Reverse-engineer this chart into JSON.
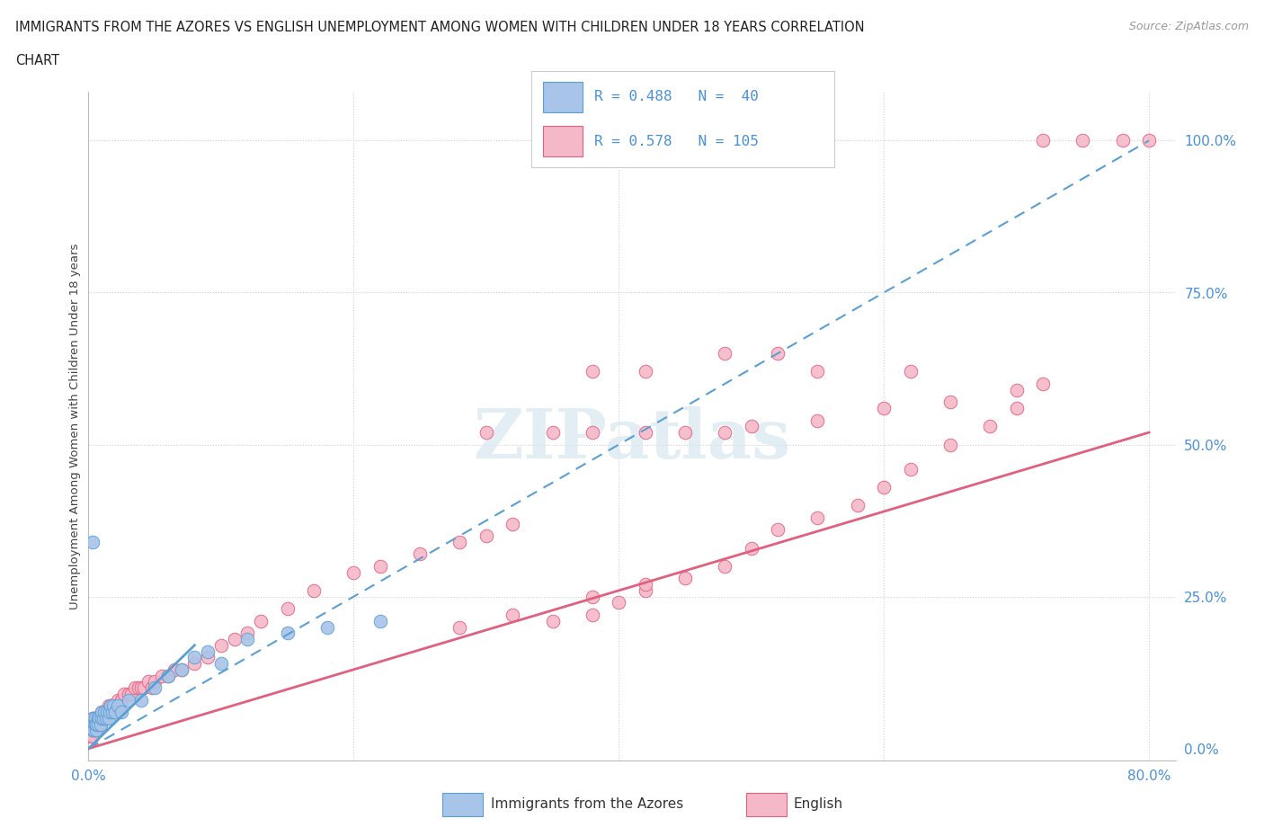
{
  "title_line1": "IMMIGRANTS FROM THE AZORES VS ENGLISH UNEMPLOYMENT AMONG WOMEN WITH CHILDREN UNDER 18 YEARS CORRELATION",
  "title_line2": "CHART",
  "source": "Source: ZipAtlas.com",
  "ylabel": "Unemployment Among Women with Children Under 18 years",
  "xlim": [
    0.0,
    0.82
  ],
  "ylim": [
    -0.02,
    1.08
  ],
  "blue_color": "#a8c4e8",
  "pink_color": "#f5b8c8",
  "blue_edge_color": "#5a9fd4",
  "pink_edge_color": "#e06080",
  "blue_line_color": "#5a9fd4",
  "pink_line_color": "#e06080",
  "blue_trend": [
    0.0,
    0.0,
    0.8,
    1.0
  ],
  "pink_trend": [
    0.0,
    0.0,
    0.8,
    0.52
  ],
  "blue_solid_line": [
    0.0,
    0.0,
    0.08,
    0.17
  ],
  "legend_text_color": "#4a90d9",
  "grid_color": "#d0d0d0",
  "background_color": "#ffffff",
  "watermark": "ZIPatlas",
  "blue_scatter_x": [
    0.002,
    0.003,
    0.003,
    0.004,
    0.004,
    0.005,
    0.005,
    0.006,
    0.006,
    0.007,
    0.007,
    0.008,
    0.009,
    0.01,
    0.01,
    0.011,
    0.012,
    0.013,
    0.014,
    0.015,
    0.016,
    0.017,
    0.018,
    0.019,
    0.02,
    0.022,
    0.025,
    0.03,
    0.04,
    0.05,
    0.06,
    0.07,
    0.08,
    0.09,
    0.1,
    0.12,
    0.15,
    0.18,
    0.22,
    0.003
  ],
  "blue_scatter_y": [
    0.04,
    0.03,
    0.05,
    0.04,
    0.03,
    0.05,
    0.04,
    0.03,
    0.04,
    0.05,
    0.04,
    0.05,
    0.04,
    0.05,
    0.06,
    0.05,
    0.06,
    0.05,
    0.06,
    0.05,
    0.06,
    0.07,
    0.06,
    0.07,
    0.06,
    0.07,
    0.06,
    0.08,
    0.08,
    0.1,
    0.12,
    0.13,
    0.15,
    0.16,
    0.14,
    0.18,
    0.19,
    0.2,
    0.21,
    0.34
  ],
  "pink_scatter_x": [
    0.001,
    0.001,
    0.002,
    0.002,
    0.003,
    0.003,
    0.003,
    0.004,
    0.004,
    0.004,
    0.005,
    0.005,
    0.005,
    0.006,
    0.006,
    0.007,
    0.007,
    0.008,
    0.008,
    0.009,
    0.01,
    0.01,
    0.011,
    0.012,
    0.013,
    0.014,
    0.015,
    0.016,
    0.017,
    0.018,
    0.019,
    0.02,
    0.021,
    0.022,
    0.023,
    0.025,
    0.027,
    0.03,
    0.032,
    0.035,
    0.038,
    0.04,
    0.042,
    0.045,
    0.048,
    0.05,
    0.055,
    0.06,
    0.065,
    0.07,
    0.08,
    0.09,
    0.1,
    0.11,
    0.12,
    0.13,
    0.15,
    0.17,
    0.2,
    0.22,
    0.25,
    0.28,
    0.3,
    0.32,
    0.35,
    0.38,
    0.4,
    0.42,
    0.45,
    0.48,
    0.5,
    0.52,
    0.55,
    0.58,
    0.6,
    0.62,
    0.65,
    0.68,
    0.7,
    0.72,
    0.3,
    0.35,
    0.38,
    0.42,
    0.45,
    0.5,
    0.55,
    0.6,
    0.65,
    0.7,
    0.72,
    0.75,
    0.78,
    0.8,
    0.48,
    0.52,
    0.38,
    0.42,
    0.55,
    0.62,
    0.28,
    0.32,
    0.38,
    0.42,
    0.48
  ],
  "pink_scatter_y": [
    0.02,
    0.03,
    0.03,
    0.04,
    0.02,
    0.04,
    0.05,
    0.03,
    0.04,
    0.05,
    0.03,
    0.04,
    0.05,
    0.03,
    0.04,
    0.04,
    0.05,
    0.04,
    0.05,
    0.04,
    0.05,
    0.06,
    0.05,
    0.06,
    0.05,
    0.06,
    0.07,
    0.06,
    0.07,
    0.06,
    0.07,
    0.07,
    0.07,
    0.08,
    0.07,
    0.08,
    0.09,
    0.09,
    0.09,
    0.1,
    0.1,
    0.1,
    0.1,
    0.11,
    0.1,
    0.11,
    0.12,
    0.12,
    0.13,
    0.13,
    0.14,
    0.15,
    0.17,
    0.18,
    0.19,
    0.21,
    0.23,
    0.26,
    0.29,
    0.3,
    0.32,
    0.34,
    0.35,
    0.37,
    0.21,
    0.22,
    0.24,
    0.26,
    0.28,
    0.3,
    0.33,
    0.36,
    0.38,
    0.4,
    0.43,
    0.46,
    0.5,
    0.53,
    0.56,
    0.6,
    0.52,
    0.52,
    0.52,
    0.52,
    0.52,
    0.53,
    0.54,
    0.56,
    0.57,
    0.59,
    1.0,
    1.0,
    1.0,
    1.0,
    0.65,
    0.65,
    0.62,
    0.62,
    0.62,
    0.62,
    0.2,
    0.22,
    0.25,
    0.27,
    0.52
  ]
}
